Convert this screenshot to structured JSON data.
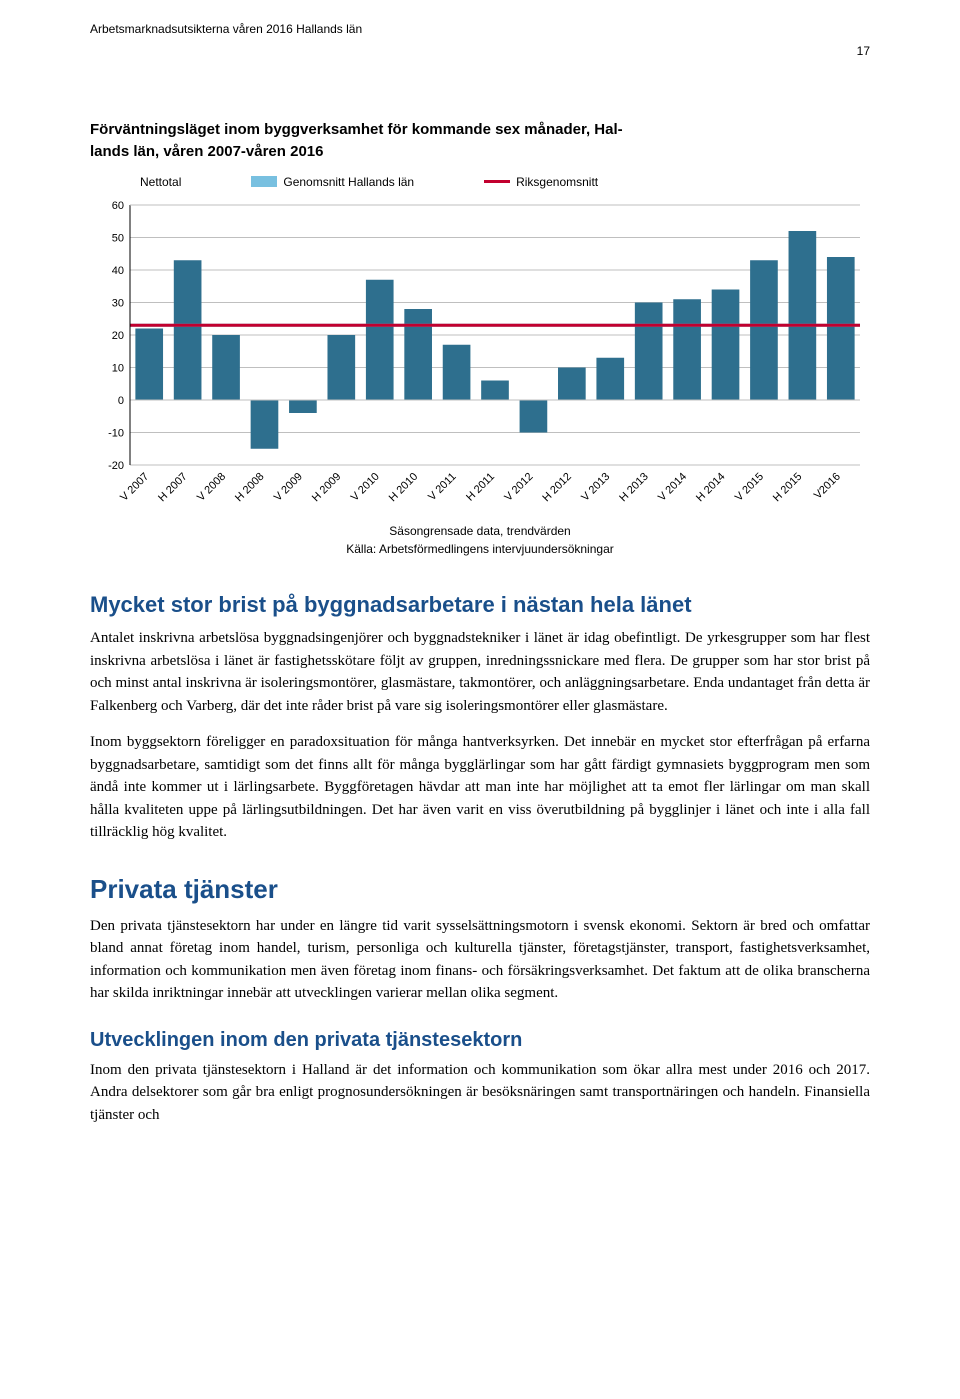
{
  "running_header": "Arbetsmarknadsutsikterna våren 2016 Hallands län",
  "page_number": "17",
  "chart": {
    "title_line1": "Förväntningsläget inom byggverksamhet för kommande sex månader, Hal-",
    "title_line2": "lands län, våren 2007-våren 2016",
    "legend": {
      "nettotal": "Nettotal",
      "genomsnitt": "Genomsnitt Hallands län",
      "riks": "Riksgenomsnitt"
    },
    "type": "bar",
    "categories": [
      "V 2007",
      "H 2007",
      "V 2008",
      "H 2008",
      "V 2009",
      "H 2009",
      "V 2010",
      "H 2010",
      "V 2011",
      "H 2011",
      "V 2012",
      "H 2012",
      "V 2013",
      "H 2013",
      "V 2014",
      "H 2014",
      "V 2015",
      "H 2015",
      "V2016"
    ],
    "values": [
      22,
      43,
      20,
      -15,
      -4,
      20,
      37,
      28,
      17,
      6,
      -10,
      10,
      13,
      30,
      31,
      34,
      43,
      52,
      44
    ],
    "bar_color": "#2e6f8e",
    "halland_avg": 23,
    "halland_color": "#78c0e0",
    "riks_avg": 23,
    "riks_color": "#c2002f",
    "ylim": [
      -20,
      60
    ],
    "ytick_step": 10,
    "grid_color": "#bfbfbf",
    "axis_color": "#000000",
    "tick_fontsize": 11,
    "source_line1": "Säsongrensade data, trendvärden",
    "source_line2": "Källa: Arbetsförmedlingens intervjuundersökningar"
  },
  "sections": {
    "s1_title": "Mycket stor brist på byggnadsarbetare i nästan hela länet",
    "s1_p1": "Antalet inskrivna arbetslösa byggnadsingenjörer och byggnadstekniker i länet är idag obefintligt. De yrkesgrupper som har flest inskrivna arbetslösa i länet är fastighetsskötare följt av gruppen, inredningssnickare med flera. De grupper som har stor brist på och minst antal inskrivna är isoleringsmontörer, glasmästare, takmontörer, och anläggningsarbetare. Enda undantaget från detta är Falkenberg och Varberg, där det inte råder brist på vare sig isoleringsmontörer eller glasmästare.",
    "s1_p2": "Inom byggsektorn föreligger en paradoxsituation för många hantverksyrken. Det innebär en mycket stor efterfrågan på erfarna byggnadsarbetare, samtidigt som det finns allt för många bygglärlingar som har gått färdigt gymnasiets byggprogram men som ändå inte kommer ut i lärlingsarbete. Byggföretagen hävdar att man inte har möjlighet att ta emot fler lärlingar om man skall hålla kvaliteten uppe på lärlingsutbildningen. Det har även varit en viss överutbildning på bygglinjer i länet och inte i alla fall tillräcklig hög kvalitet.",
    "s2_title": "Privata tjänster",
    "s2_p1": "Den privata tjänstesektorn har under en längre tid varit sysselsättningsmotorn i svensk ekonomi. Sektorn är bred och omfattar bland annat företag inom handel, turism, personliga och kulturella tjänster, företagstjänster, transport, fastighetsverksamhet, information och kommunikation men även företag inom finans- och försäkringsverksamhet. Det faktum att de olika branscherna har skilda inriktningar innebär att utvecklingen varierar mellan olika segment.",
    "s3_title": "Utvecklingen inom den privata tjänstesektorn",
    "s3_p1": "Inom den privata tjänstesektorn i Halland är det information och kommunikation som ökar allra mest under 2016 och 2017. Andra delsektorer som går bra enligt prognosundersökningen är besöksnäringen samt transportnäringen och handeln. Finansiella tjänster och"
  }
}
